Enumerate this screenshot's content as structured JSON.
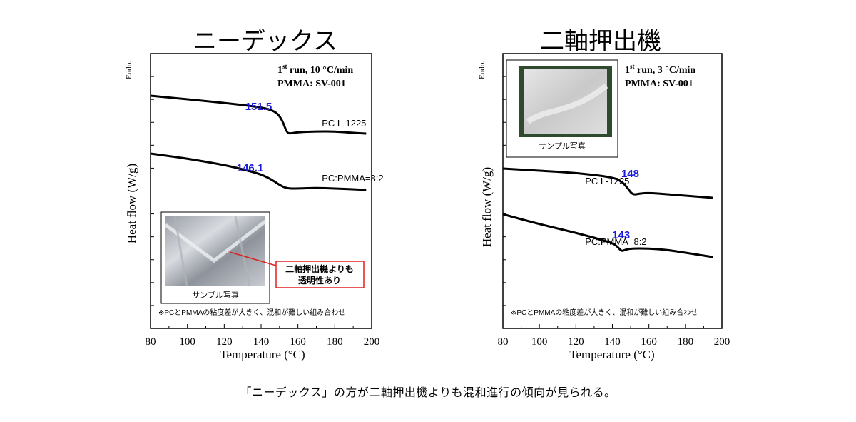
{
  "titles": {
    "left": "ニーデックス",
    "right": "二軸押出機"
  },
  "caption": "「ニーデックス」の方が二軸押出機よりも混和進行の傾向が見られる。",
  "chart_data": [
    {
      "type": "line",
      "panel": "left",
      "xlabel": "Temperature (°C)",
      "ylabel": "Heat flow (W/g)",
      "endo_label": "Endo.",
      "xlim": [
        80,
        200
      ],
      "xticks": [
        80,
        100,
        120,
        140,
        160,
        180,
        200
      ],
      "conditions": {
        "line1_pre": "1",
        "line1_sup": "st",
        "line1_post": " run, 10 °C/min",
        "line2": "PMMA: SV-001"
      },
      "footnote": "※PCとPMMAの粘度差が大きく、混和が難しい組み合わせ",
      "photo_label": "サンプル写真",
      "callout": {
        "line1": "二軸押出機よりも",
        "line2": "透明性あり"
      },
      "label_color": "#1a1adb",
      "series": [
        {
          "name": "PC L-1225",
          "tg_label": "151.5",
          "x": [
            80,
            100,
            120,
            140,
            148,
            151.5,
            154,
            156,
            160,
            170,
            180,
            190,
            197
          ],
          "y": [
            134,
            139,
            144,
            150,
            156,
            168,
            186,
            187,
            185,
            184,
            184,
            186,
            187
          ]
        },
        {
          "name": "PC:PMMA=8:2",
          "tg_label": "146.1",
          "x": [
            80,
            100,
            120,
            130,
            140,
            146.1,
            150,
            154,
            160,
            170,
            180,
            190,
            197
          ],
          "y": [
            215,
            222,
            231,
            237,
            244,
            252,
            259,
            264,
            264,
            263,
            264,
            265,
            266
          ]
        }
      ]
    },
    {
      "type": "line",
      "panel": "right",
      "xlabel": "Temperature (°C)",
      "ylabel": "Heat flow (W/g)",
      "endo_label": "Endo.",
      "xlim": [
        80,
        200
      ],
      "xticks": [
        80,
        100,
        120,
        140,
        160,
        180,
        200
      ],
      "conditions": {
        "line1_pre": "1",
        "line1_sup": "st",
        "line1_post": " run, 3 °C/min",
        "line2": "PMMA: SV-001"
      },
      "footnote": "※PCとPMMAの粘度差が大きく、混和が難しい組み合わせ",
      "photo_label": "サンプル写真",
      "label_color": "#1a1adb",
      "series": [
        {
          "name": "PC L-1225",
          "tg_label": "148",
          "x": [
            80,
            100,
            120,
            140,
            145,
            148,
            151,
            155,
            160,
            170,
            180,
            190,
            195
          ],
          "y": [
            236,
            239,
            242,
            248,
            254,
            262,
            273,
            271,
            270,
            272,
            274,
            276,
            277
          ]
        },
        {
          "name": "PC:PMMA=8:2",
          "tg_label": "143",
          "x": [
            80,
            100,
            120,
            140,
            143,
            145,
            147,
            150,
            160,
            170,
            180,
            190,
            195
          ],
          "y": [
            300,
            314,
            326,
            340,
            346,
            352,
            350,
            348,
            348,
            350,
            354,
            358,
            360
          ]
        }
      ]
    }
  ]
}
